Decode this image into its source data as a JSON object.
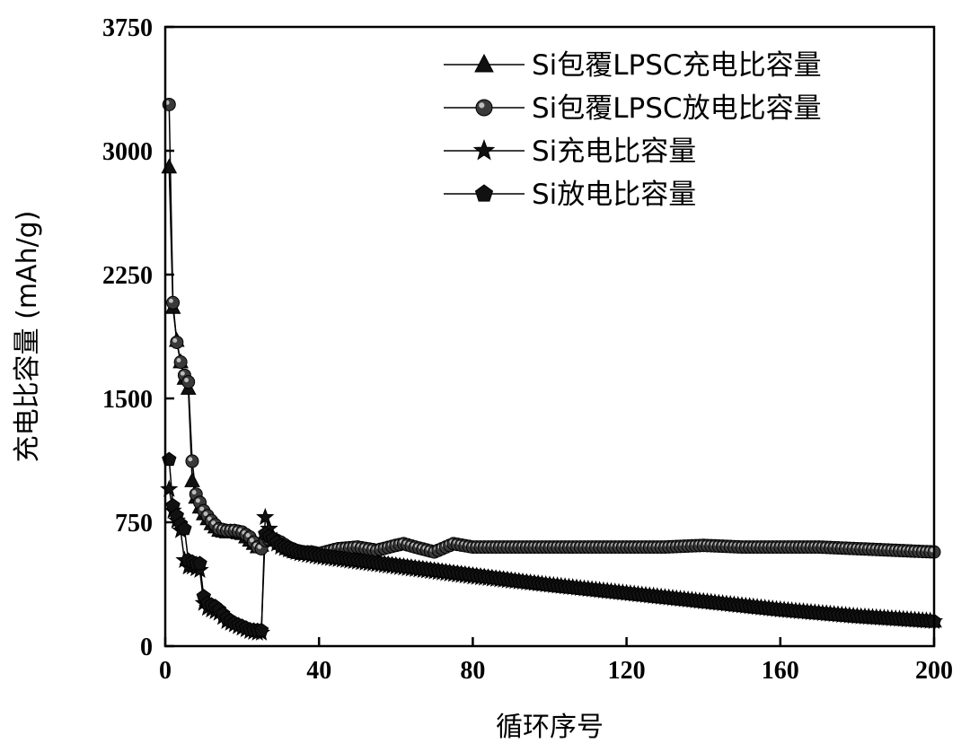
{
  "chart_data": {
    "type": "line",
    "xlabel": "循环序号",
    "ylabel": "充电比容量 (mAh/g)",
    "xlim": [
      0,
      200
    ],
    "ylim": [
      0,
      3750
    ],
    "xticks": [
      "0",
      "40",
      "80",
      "120",
      "160",
      "200"
    ],
    "yticks": [
      "0",
      "750",
      "1500",
      "2250",
      "3000",
      "3750"
    ],
    "grid": false,
    "legend_position": "top-right",
    "series": [
      {
        "name": "Si包覆LPSC充电比容量",
        "marker": "triangle",
        "color": "#000000",
        "x": [
          1,
          2,
          3,
          4,
          5,
          6,
          7,
          8,
          9,
          10,
          12,
          14,
          16,
          18,
          20,
          22,
          24,
          25,
          26,
          28,
          30,
          32,
          34,
          36,
          38,
          40,
          50,
          60,
          80,
          100,
          120,
          140,
          160,
          180,
          200
        ],
        "y": [
          2900,
          2050,
          1850,
          1720,
          1620,
          1560,
          1000,
          900,
          840,
          800,
          740,
          700,
          690,
          690,
          680,
          640,
          600,
          610,
          680,
          660,
          620,
          590,
          570,
          560,
          560,
          550,
          520,
          490,
          430,
          370,
          320,
          270,
          220,
          180,
          150
        ]
      },
      {
        "name": "Si包覆LPSC放电比容量",
        "marker": "circle",
        "color": "#000000",
        "x": [
          1,
          2,
          3,
          4,
          5,
          6,
          7,
          8,
          9,
          10,
          12,
          14,
          16,
          18,
          20,
          22,
          24,
          25,
          26,
          28,
          30,
          32,
          34,
          36,
          38,
          40,
          45,
          50,
          55,
          60,
          62,
          65,
          70,
          75,
          80,
          90,
          100,
          110,
          120,
          130,
          140,
          150,
          160,
          170,
          180,
          190,
          200
        ],
        "y": [
          3280,
          2080,
          1840,
          1720,
          1640,
          1600,
          1120,
          920,
          870,
          820,
          760,
          710,
          700,
          700,
          690,
          660,
          600,
          590,
          640,
          650,
          630,
          600,
          580,
          570,
          570,
          560,
          590,
          600,
          580,
          610,
          620,
          600,
          570,
          620,
          600,
          600,
          600,
          600,
          600,
          600,
          610,
          600,
          600,
          600,
          590,
          580,
          570
        ]
      },
      {
        "name": "Si充电比容量",
        "marker": "star",
        "color": "#000000",
        "x": [
          1,
          2,
          3,
          4,
          5,
          6,
          7,
          8,
          9,
          10,
          11,
          12,
          14,
          16,
          18,
          20,
          22,
          24,
          25,
          26,
          28,
          30,
          35,
          40,
          50,
          60,
          80,
          100,
          120,
          140,
          160,
          180,
          200
        ],
        "y": [
          950,
          820,
          760,
          700,
          520,
          480,
          480,
          470,
          460,
          260,
          230,
          220,
          200,
          150,
          130,
          110,
          90,
          80,
          80,
          780,
          640,
          600,
          560,
          540,
          510,
          480,
          420,
          370,
          320,
          270,
          220,
          180,
          150
        ]
      },
      {
        "name": "Si放电比容量",
        "marker": "pentagon",
        "color": "#000000",
        "x": [
          1,
          2,
          3,
          4,
          5,
          6,
          7,
          8,
          9,
          10,
          11,
          12,
          13,
          14,
          16,
          18,
          20,
          22,
          24,
          25,
          26,
          28,
          30,
          35,
          40,
          50,
          60,
          80,
          100,
          120,
          140,
          160,
          180,
          200
        ],
        "y": [
          1130,
          850,
          790,
          740,
          710,
          520,
          510,
          500,
          500,
          300,
          260,
          250,
          240,
          220,
          170,
          140,
          120,
          100,
          95,
          95,
          680,
          650,
          610,
          570,
          550,
          520,
          490,
          430,
          370,
          320,
          270,
          220,
          180,
          150
        ]
      }
    ]
  }
}
